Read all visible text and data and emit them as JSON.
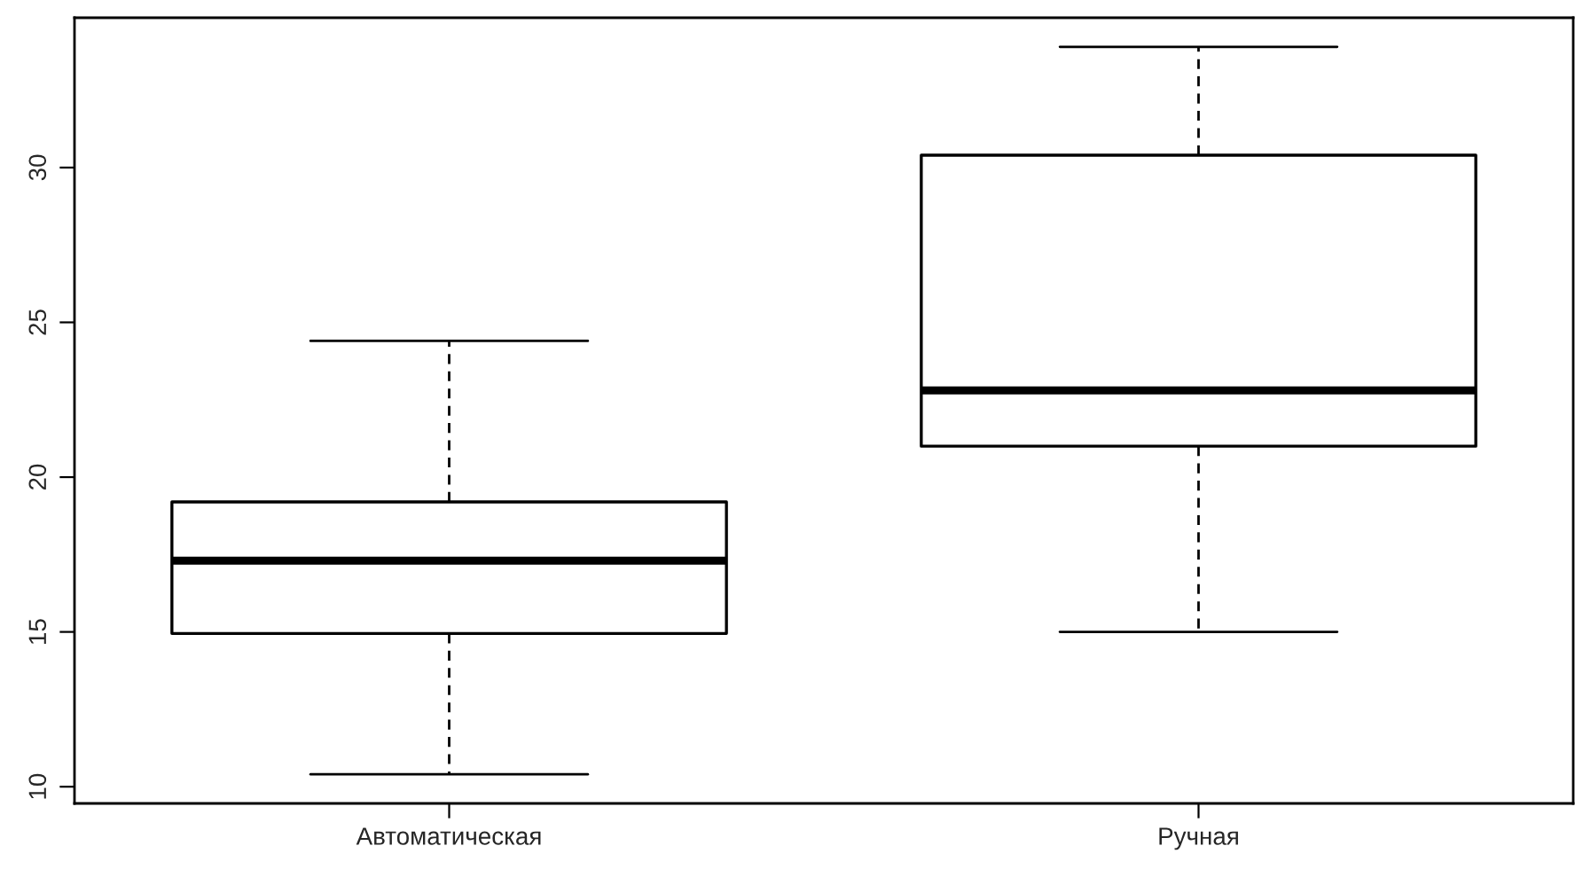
{
  "chart_data": {
    "type": "box",
    "categories": [
      "Автоматическая",
      "Ручная"
    ],
    "boxes": [
      {
        "low": 10.4,
        "q1": 14.95,
        "median": 17.3,
        "q3": 19.2,
        "high": 24.4
      },
      {
        "low": 15.0,
        "q1": 21.0,
        "median": 22.8,
        "q3": 30.4,
        "high": 33.9
      }
    ],
    "ylim": [
      9.46,
      34.84
    ],
    "yticks": [
      10,
      15,
      20,
      25,
      30
    ],
    "grid": false
  }
}
